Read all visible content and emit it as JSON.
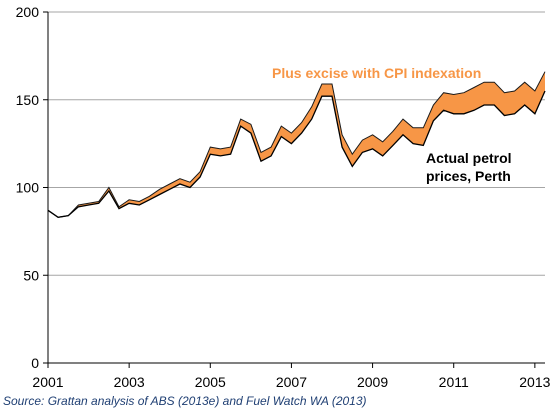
{
  "chart_data": {
    "type": "area",
    "x_label_ticks": [
      2001,
      2003,
      2005,
      2007,
      2009,
      2011,
      2013
    ],
    "y_ticks": [
      0,
      50,
      100,
      150,
      200
    ],
    "xlim": [
      2001,
      2013.25
    ],
    "ylim": [
      0,
      200
    ],
    "grid": "horizontal",
    "x": [
      2001.0,
      2001.25,
      2001.5,
      2001.75,
      2002.0,
      2002.25,
      2002.5,
      2002.75,
      2003.0,
      2003.25,
      2003.5,
      2003.75,
      2004.0,
      2004.25,
      2004.5,
      2004.75,
      2005.0,
      2005.25,
      2005.5,
      2005.75,
      2006.0,
      2006.25,
      2006.5,
      2006.75,
      2007.0,
      2007.25,
      2007.5,
      2007.75,
      2008.0,
      2008.25,
      2008.5,
      2008.75,
      2009.0,
      2009.25,
      2009.5,
      2009.75,
      2010.0,
      2010.25,
      2010.5,
      2010.75,
      2011.0,
      2011.25,
      2011.5,
      2011.75,
      2012.0,
      2012.25,
      2012.5,
      2012.75,
      2013.0,
      2013.25
    ],
    "series": [
      {
        "name": "Actual petrol prices, Perth",
        "values": [
          87,
          83,
          84,
          89,
          90,
          91,
          98,
          88,
          91,
          90,
          93,
          96,
          99,
          102,
          100,
          106,
          119,
          118,
          119,
          135,
          131,
          115,
          118,
          129,
          125,
          131,
          139,
          152,
          152,
          123,
          112,
          120,
          122,
          118,
          124,
          130,
          125,
          124,
          138,
          144,
          142,
          142,
          144,
          147,
          147,
          141,
          142,
          147,
          142,
          155
        ]
      },
      {
        "name": "Plus excise with CPI indexation",
        "values": [
          87,
          83,
          84,
          90,
          91,
          92,
          100,
          89,
          93,
          92,
          95,
          99,
          102,
          105,
          103,
          109,
          123,
          122,
          123,
          139,
          136,
          120,
          123,
          135,
          131,
          137,
          146,
          159,
          159,
          130,
          119,
          127,
          130,
          126,
          132,
          139,
          134,
          134,
          147,
          154,
          153,
          154,
          157,
          160,
          160,
          154,
          155,
          160,
          155,
          166
        ]
      }
    ],
    "band_color": "#f79646",
    "lower_line_color": "#000000",
    "upper_annotation_color": "#f79646",
    "annotations": [
      "Plus excise with CPI indexation",
      "Actual petrol",
      "prices, Perth"
    ]
  },
  "source": "Source: Grattan analysis of ABS (2013e) and Fuel Watch WA (2013)"
}
